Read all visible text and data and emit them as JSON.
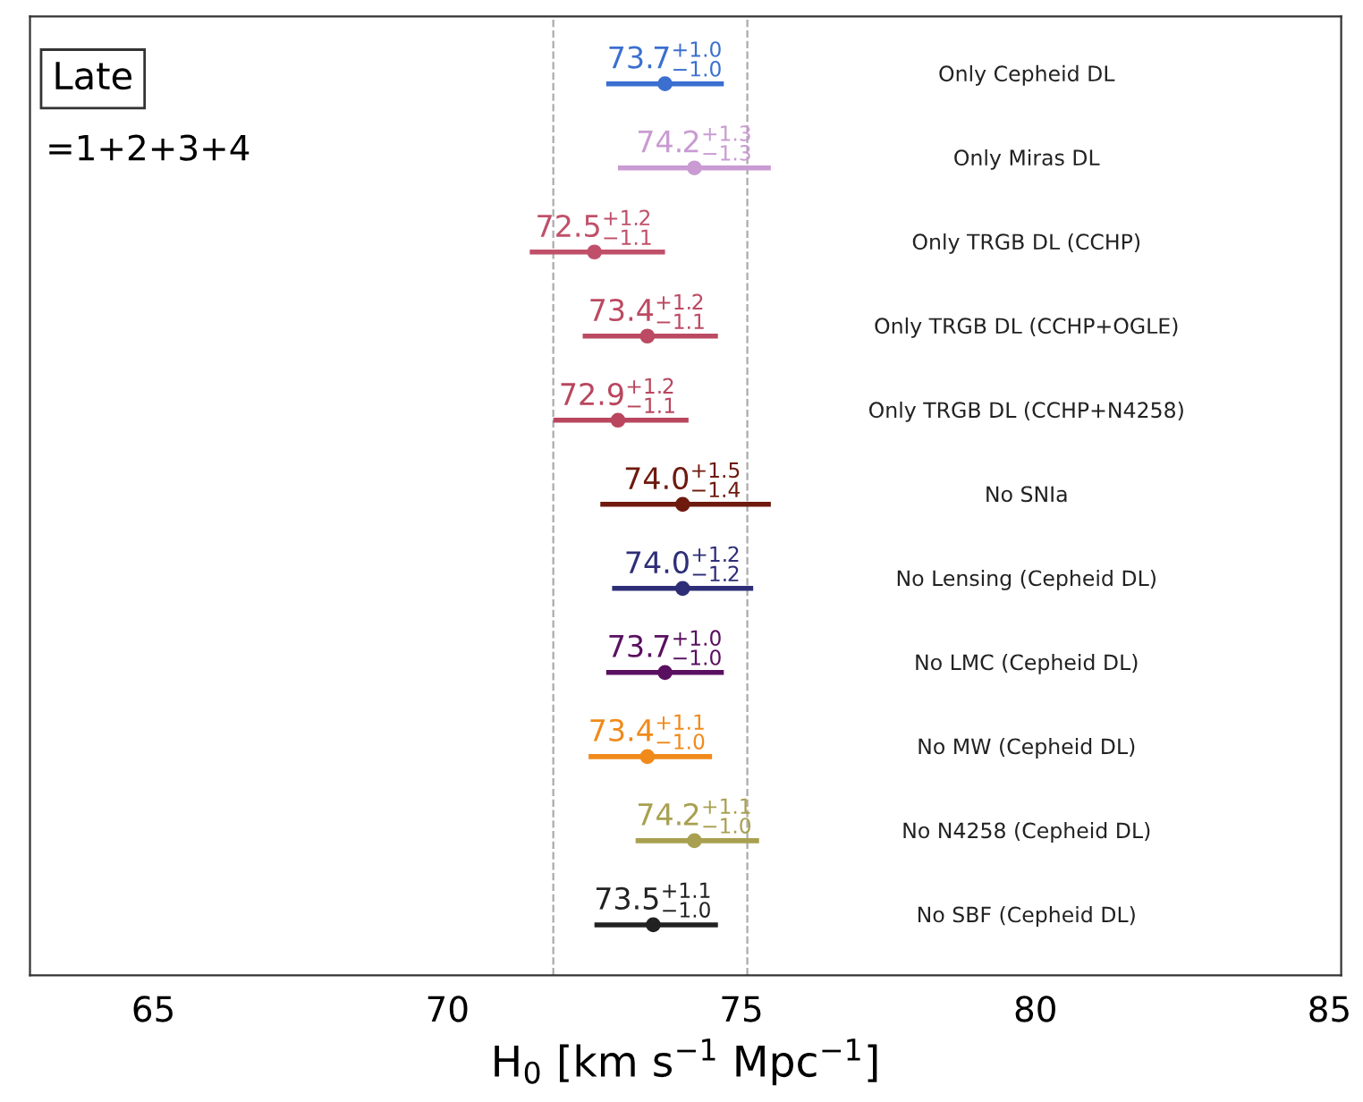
{
  "chart_data": {
    "type": "scatter",
    "orientation": "horizontal",
    "xlabel": "H$_{0}$ [km s$^{−1}$ Mpc$^{−1}$]",
    "categories": [
      "Only Cepheid DL",
      "Only Miras DL",
      "Only TRGB DL (CCHP)",
      "Only TRGB DL (CCHP+OGLE)",
      "Only TRGB DL (CCHP+N4258)",
      "No SNIa",
      "No Lensing (Cepheid DL)",
      "No LMC (Cepheid DL)",
      "No MW (Cepheid DL)",
      "No N4258 (Cepheid DL)",
      "No SBF (Cepheid DL)"
    ],
    "values": [
      73.7,
      74.2,
      72.5,
      73.4,
      72.9,
      74.0,
      74.0,
      73.7,
      73.4,
      74.2,
      73.5
    ],
    "errors": [
      [
        72.7,
        74.7
      ],
      [
        72.9,
        75.5
      ],
      [
        71.4,
        73.7
      ],
      [
        72.3,
        74.6
      ],
      [
        71.8,
        74.1
      ],
      [
        72.6,
        75.5
      ],
      [
        72.8,
        75.2
      ],
      [
        72.7,
        74.7
      ],
      [
        72.4,
        74.5
      ],
      [
        73.2,
        75.3
      ],
      [
        72.5,
        74.6
      ]
    ],
    "colors": [
      "#3b6fd0",
      "#c99bd2",
      "#c0506a",
      "#bb4a62",
      "#b9465e",
      "#6e1a0e",
      "#2e2e78",
      "#5a1060",
      "#f08a1a",
      "#a8a050",
      "#222222"
    ],
    "value_labels": [
      "73.7$^{+1.0}$$_{−1.0}$",
      "74.2$^{+1.3}$$_{−1.3}$",
      "72.5$^{+1.2}$$_{−1.1}$",
      "73.4$^{+1.2}$$_{−1.1}$",
      "72.9$^{+1.2}$$_{−1.1}$",
      "74.0$^{+1.5}$$_{−1.4}$",
      "74.0$^{+1.2}$$_{−1.2}$",
      "73.7$^{+1.0}$$_{−1.0}$",
      "73.4$^{+1.1}$$_{−1.0}$",
      "74.2$^{+1.1}$$_{−1.0}$",
      "73.5$^{+1.1}$$_{−1.0}$"
    ],
    "xlim": [
      62.9,
      85.2
    ],
    "xticks": [
      65,
      70,
      75,
      80,
      85
    ],
    "tick_labels": "x",
    "grid": false,
    "marker": "circle",
    "ref_lines": [
      {
        "axis": "x",
        "value": 71.8,
        "label": null,
        "color": "#aaaaaa",
        "line_style": "dashed"
      },
      {
        "axis": "x",
        "value": 75.1,
        "label": null,
        "color": "#aaaaaa",
        "line_style": "dashed"
      }
    ],
    "annotations": [
      "Late",
      "=1+2+3+4"
    ]
  }
}
